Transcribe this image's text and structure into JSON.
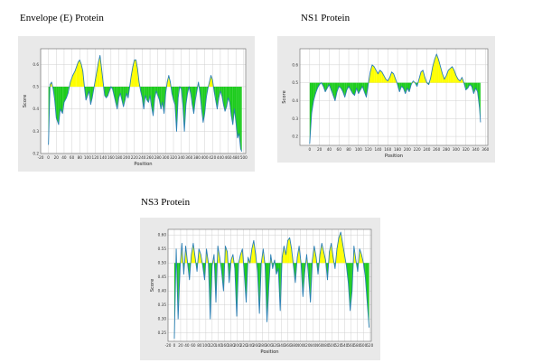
{
  "captions": {
    "envelope": "Envelope (E) Protein",
    "ns1": "NS1 Protein",
    "ns3": "NS3 Protein"
  },
  "colors": {
    "line": "#2a7fb4",
    "above": "#ffff00",
    "below": "#1dcc1d",
    "grid": "#d0d0d0",
    "panel_bg": "#e9e9e9",
    "plot_bg": "#ffffff"
  },
  "chart_data": [
    {
      "id": "envelope",
      "type": "area",
      "title": "",
      "xlabel": "Position",
      "ylabel": "Score",
      "threshold": 0.5,
      "xlim": [
        -20,
        505
      ],
      "ylim": [
        0.2,
        0.67
      ],
      "xticks": [
        -20,
        0,
        20,
        40,
        60,
        80,
        100,
        120,
        140,
        160,
        180,
        200,
        220,
        240,
        260,
        280,
        300,
        320,
        340,
        360,
        380,
        400,
        420,
        440,
        460,
        480,
        500
      ],
      "yticks": [
        0.2,
        0.3,
        0.4,
        0.5,
        0.6
      ],
      "ytick_labels": [
        "0.2",
        "0.3",
        "0.4",
        "0.5",
        "0.6"
      ],
      "grid": true,
      "series": [
        {
          "x": [
            0,
            4,
            8,
            12,
            16,
            20,
            26,
            30,
            36,
            40,
            46,
            50,
            56,
            62,
            68,
            72,
            76,
            80,
            84,
            88,
            92,
            96,
            100,
            104,
            108,
            112,
            116,
            120,
            124,
            128,
            132,
            136,
            140,
            144,
            148,
            152,
            156,
            160,
            164,
            168,
            172,
            176,
            180,
            184,
            188,
            192,
            196,
            200,
            204,
            208,
            212,
            216,
            220,
            224,
            228,
            232,
            236,
            240,
            244,
            248,
            252,
            256,
            260,
            264,
            268,
            272,
            276,
            280,
            284,
            288,
            292,
            296,
            300,
            304,
            308,
            312,
            316,
            320,
            324,
            328,
            332,
            336,
            340,
            344,
            348,
            352,
            356,
            360,
            364,
            368,
            372,
            376,
            380,
            384,
            388,
            392,
            396,
            400,
            404,
            408,
            412,
            416,
            420,
            424,
            428,
            432,
            436,
            440,
            444,
            448,
            452,
            456,
            460,
            464,
            468,
            472,
            476,
            480,
            484,
            488,
            492,
            495
          ],
          "y": [
            0.24,
            0.51,
            0.52,
            0.49,
            0.44,
            0.36,
            0.33,
            0.4,
            0.38,
            0.43,
            0.45,
            0.47,
            0.52,
            0.55,
            0.57,
            0.59,
            0.61,
            0.62,
            0.6,
            0.57,
            0.5,
            0.44,
            0.46,
            0.48,
            0.42,
            0.45,
            0.49,
            0.53,
            0.57,
            0.61,
            0.64,
            0.58,
            0.52,
            0.46,
            0.45,
            0.46,
            0.48,
            0.5,
            0.49,
            0.46,
            0.43,
            0.4,
            0.45,
            0.47,
            0.44,
            0.41,
            0.44,
            0.47,
            0.45,
            0.5,
            0.55,
            0.59,
            0.62,
            0.62,
            0.58,
            0.52,
            0.48,
            0.45,
            0.4,
            0.46,
            0.44,
            0.43,
            0.46,
            0.41,
            0.37,
            0.45,
            0.48,
            0.46,
            0.44,
            0.4,
            0.43,
            0.38,
            0.47,
            0.52,
            0.55,
            0.52,
            0.47,
            0.44,
            0.42,
            0.3,
            0.45,
            0.5,
            0.49,
            0.42,
            0.3,
            0.42,
            0.47,
            0.5,
            0.47,
            0.42,
            0.38,
            0.44,
            0.48,
            0.52,
            0.47,
            0.4,
            0.34,
            0.38,
            0.45,
            0.49,
            0.52,
            0.55,
            0.53,
            0.48,
            0.44,
            0.4,
            0.45,
            0.48,
            0.46,
            0.42,
            0.39,
            0.41,
            0.45,
            0.43,
            0.37,
            0.33,
            0.4,
            0.34,
            0.27,
            0.29,
            0.22,
            0.21
          ]
        }
      ]
    },
    {
      "id": "ns1",
      "type": "area",
      "title": "",
      "xlabel": "Position",
      "ylabel": "Score",
      "threshold": 0.5,
      "xlim": [
        -20,
        365
      ],
      "ylim": [
        0.15,
        0.69
      ],
      "xticks": [
        0,
        20,
        40,
        60,
        80,
        100,
        120,
        140,
        160,
        180,
        200,
        220,
        240,
        260,
        280,
        300,
        320,
        340,
        360
      ],
      "yticks": [
        0.2,
        0.3,
        0.4,
        0.5,
        0.6
      ],
      "ytick_labels": [
        "0.2",
        "0.3",
        "0.4",
        "0.5",
        "0.6"
      ],
      "grid": true,
      "series": [
        {
          "x": [
            0,
            4,
            8,
            12,
            16,
            20,
            24,
            28,
            32,
            36,
            40,
            44,
            48,
            52,
            56,
            60,
            64,
            68,
            72,
            76,
            80,
            84,
            88,
            92,
            96,
            100,
            104,
            108,
            112,
            116,
            120,
            124,
            128,
            132,
            136,
            140,
            144,
            148,
            152,
            156,
            160,
            164,
            168,
            172,
            176,
            180,
            184,
            188,
            192,
            196,
            200,
            204,
            208,
            212,
            216,
            220,
            224,
            228,
            232,
            236,
            240,
            244,
            248,
            252,
            256,
            260,
            264,
            268,
            272,
            276,
            280,
            284,
            288,
            292,
            296,
            300,
            304,
            308,
            312,
            316,
            320,
            324,
            328,
            332,
            336,
            340,
            344,
            348,
            350
          ],
          "y": [
            0.16,
            0.33,
            0.4,
            0.44,
            0.47,
            0.49,
            0.5,
            0.48,
            0.45,
            0.47,
            0.49,
            0.46,
            0.43,
            0.4,
            0.45,
            0.48,
            0.47,
            0.45,
            0.42,
            0.46,
            0.48,
            0.46,
            0.44,
            0.43,
            0.47,
            0.44,
            0.46,
            0.48,
            0.45,
            0.42,
            0.49,
            0.56,
            0.6,
            0.59,
            0.57,
            0.55,
            0.57,
            0.56,
            0.54,
            0.52,
            0.51,
            0.53,
            0.56,
            0.55,
            0.52,
            0.49,
            0.45,
            0.48,
            0.47,
            0.44,
            0.47,
            0.45,
            0.49,
            0.51,
            0.5,
            0.48,
            0.52,
            0.56,
            0.57,
            0.53,
            0.5,
            0.49,
            0.53,
            0.59,
            0.63,
            0.66,
            0.63,
            0.59,
            0.55,
            0.52,
            0.54,
            0.57,
            0.58,
            0.59,
            0.57,
            0.54,
            0.52,
            0.51,
            0.53,
            0.5,
            0.46,
            0.47,
            0.49,
            0.48,
            0.44,
            0.47,
            0.45,
            0.36,
            0.28
          ]
        }
      ]
    },
    {
      "id": "ns3",
      "type": "area",
      "title": "",
      "xlabel": "Position",
      "ylabel": "Score",
      "threshold": 0.5,
      "xlim": [
        -20,
        625
      ],
      "ylim": [
        0.22,
        0.62
      ],
      "xticks": [
        -20,
        0,
        20,
        40,
        60,
        80,
        100,
        120,
        140,
        160,
        180,
        200,
        220,
        240,
        260,
        280,
        300,
        320,
        340,
        360,
        380,
        400,
        420,
        440,
        460,
        480,
        500,
        520,
        540,
        560,
        580,
        600,
        620
      ],
      "yticks": [
        0.25,
        0.3,
        0.35,
        0.4,
        0.45,
        0.5,
        0.55,
        0.6
      ],
      "ytick_labels": [
        "0.25",
        "0.30",
        "0.35",
        "0.40",
        "0.45",
        "0.50",
        "0.55",
        "0.60"
      ],
      "grid": true,
      "series": [
        {
          "x": [
            0,
            6,
            12,
            18,
            24,
            30,
            36,
            42,
            48,
            54,
            60,
            66,
            72,
            78,
            84,
            90,
            96,
            102,
            108,
            114,
            120,
            126,
            132,
            138,
            144,
            150,
            156,
            162,
            168,
            174,
            180,
            186,
            192,
            198,
            204,
            210,
            216,
            222,
            228,
            234,
            240,
            246,
            252,
            258,
            264,
            270,
            276,
            282,
            288,
            294,
            300,
            306,
            312,
            318,
            324,
            330,
            336,
            342,
            348,
            354,
            360,
            366,
            372,
            378,
            384,
            390,
            396,
            402,
            408,
            414,
            420,
            426,
            432,
            438,
            444,
            450,
            456,
            462,
            468,
            474,
            480,
            486,
            492,
            498,
            504,
            510,
            516,
            522,
            528,
            534,
            540,
            546,
            552,
            558,
            564,
            570,
            576,
            582,
            588,
            594,
            600,
            606,
            612,
            618
          ],
          "y": [
            0.23,
            0.55,
            0.3,
            0.48,
            0.57,
            0.46,
            0.56,
            0.5,
            0.44,
            0.53,
            0.57,
            0.52,
            0.47,
            0.55,
            0.53,
            0.49,
            0.44,
            0.55,
            0.5,
            0.3,
            0.49,
            0.53,
            0.36,
            0.56,
            0.52,
            0.47,
            0.4,
            0.56,
            0.54,
            0.43,
            0.51,
            0.53,
            0.48,
            0.31,
            0.5,
            0.53,
            0.55,
            0.46,
            0.36,
            0.52,
            0.5,
            0.55,
            0.58,
            0.53,
            0.47,
            0.32,
            0.5,
            0.55,
            0.49,
            0.29,
            0.42,
            0.53,
            0.48,
            0.51,
            0.46,
            0.48,
            0.33,
            0.52,
            0.56,
            0.53,
            0.58,
            0.59,
            0.55,
            0.49,
            0.43,
            0.52,
            0.56,
            0.5,
            0.38,
            0.47,
            0.53,
            0.45,
            0.36,
            0.51,
            0.56,
            0.52,
            0.46,
            0.53,
            0.57,
            0.54,
            0.51,
            0.44,
            0.54,
            0.57,
            0.52,
            0.48,
            0.55,
            0.59,
            0.61,
            0.57,
            0.53,
            0.49,
            0.43,
            0.33,
            0.4,
            0.56,
            0.51,
            0.47,
            0.55,
            0.53,
            0.5,
            0.45,
            0.36,
            0.27
          ]
        }
      ]
    }
  ]
}
